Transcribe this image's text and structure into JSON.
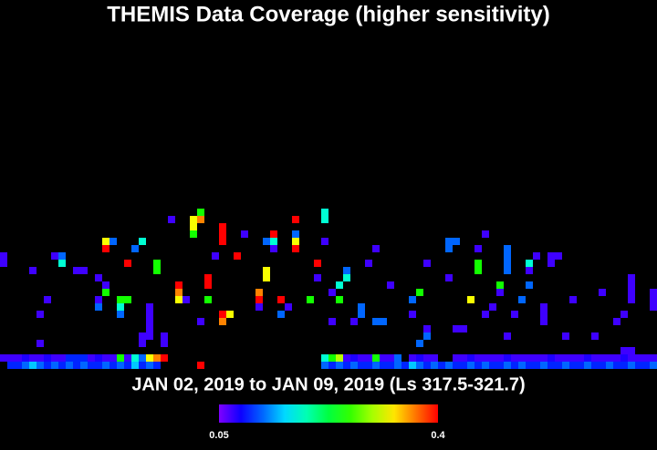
{
  "chart_data": {
    "type": "heatmap",
    "title": "THEMIS Data Coverage (higher sensitivity)",
    "subtitle": "JAN 02, 2019 to JAN 09, 2019 (Ls 317.5-321.7)",
    "xlim": [
      0,
      90
    ],
    "ylim": [
      0,
      50
    ],
    "cells": [
      [
        0,
        1,
        0.07
      ],
      [
        1,
        1,
        0.07
      ],
      [
        2,
        1,
        0.07
      ],
      [
        3,
        1,
        0.08
      ],
      [
        4,
        1,
        0.07
      ],
      [
        5,
        1,
        0.07
      ],
      [
        6,
        1,
        0.08
      ],
      [
        7,
        1,
        0.07
      ],
      [
        8,
        1,
        0.07
      ],
      [
        9,
        1,
        0.1
      ],
      [
        10,
        1,
        0.1
      ],
      [
        11,
        1,
        0.1
      ],
      [
        12,
        1,
        0.07
      ],
      [
        13,
        1,
        0.08
      ],
      [
        14,
        1,
        0.07
      ],
      [
        15,
        1,
        0.07
      ],
      [
        16,
        1,
        0.25
      ],
      [
        17,
        1,
        0.07
      ],
      [
        18,
        1,
        0.18
      ],
      [
        19,
        1,
        0.12
      ],
      [
        20,
        1,
        0.32
      ],
      [
        21,
        1,
        0.36
      ],
      [
        22,
        1,
        0.4
      ],
      [
        44,
        1,
        0.18
      ],
      [
        45,
        1,
        0.25
      ],
      [
        46,
        1,
        0.3
      ],
      [
        47,
        1,
        0.07
      ],
      [
        48,
        1,
        0.08
      ],
      [
        49,
        1,
        0.07
      ],
      [
        50,
        1,
        0.07
      ],
      [
        51,
        1,
        0.25
      ],
      [
        52,
        1,
        0.07
      ],
      [
        53,
        1,
        0.07
      ],
      [
        54,
        1,
        0.12
      ],
      [
        56,
        1,
        0.07
      ],
      [
        57,
        1,
        0.08
      ],
      [
        58,
        1,
        0.07
      ],
      [
        59,
        1,
        0.07
      ],
      [
        62,
        1,
        0.07
      ],
      [
        63,
        1,
        0.07
      ],
      [
        64,
        1,
        0.08
      ],
      [
        65,
        1,
        0.07
      ],
      [
        66,
        1,
        0.07
      ],
      [
        67,
        1,
        0.07
      ],
      [
        68,
        1,
        0.07
      ],
      [
        69,
        1,
        0.08
      ],
      [
        70,
        1,
        0.07
      ],
      [
        71,
        1,
        0.07
      ],
      [
        72,
        1,
        0.07
      ],
      [
        73,
        1,
        0.07
      ],
      [
        74,
        1,
        0.07
      ],
      [
        75,
        1,
        0.08
      ],
      [
        76,
        1,
        0.07
      ],
      [
        77,
        1,
        0.07
      ],
      [
        78,
        1,
        0.07
      ],
      [
        79,
        1,
        0.07
      ],
      [
        80,
        1,
        0.08
      ],
      [
        81,
        1,
        0.07
      ],
      [
        82,
        1,
        0.07
      ],
      [
        83,
        1,
        0.07
      ],
      [
        84,
        1,
        0.07
      ],
      [
        85,
        1,
        0.08
      ],
      [
        86,
        1,
        0.07
      ],
      [
        87,
        1,
        0.07
      ],
      [
        88,
        1,
        0.07
      ],
      [
        89,
        1,
        0.07
      ],
      [
        1,
        0,
        0.1
      ],
      [
        2,
        0,
        0.1
      ],
      [
        3,
        0,
        0.12
      ],
      [
        4,
        0,
        0.15
      ],
      [
        5,
        0,
        0.12
      ],
      [
        6,
        0,
        0.1
      ],
      [
        7,
        0,
        0.12
      ],
      [
        8,
        0,
        0.1
      ],
      [
        9,
        0,
        0.12
      ],
      [
        10,
        0,
        0.1
      ],
      [
        11,
        0,
        0.12
      ],
      [
        12,
        0,
        0.1
      ],
      [
        13,
        0,
        0.1
      ],
      [
        14,
        0,
        0.12
      ],
      [
        15,
        0,
        0.1
      ],
      [
        16,
        0,
        0.12
      ],
      [
        17,
        0,
        0.1
      ],
      [
        18,
        0,
        0.15
      ],
      [
        19,
        0,
        0.1
      ],
      [
        20,
        0,
        0.12
      ],
      [
        21,
        0,
        0.1
      ],
      [
        27,
        0,
        0.4
      ],
      [
        44,
        0,
        0.12
      ],
      [
        45,
        0,
        0.1
      ],
      [
        46,
        0,
        0.12
      ],
      [
        47,
        0,
        0.1
      ],
      [
        48,
        0,
        0.12
      ],
      [
        49,
        0,
        0.1
      ],
      [
        50,
        0,
        0.1
      ],
      [
        51,
        0,
        0.12
      ],
      [
        52,
        0,
        0.1
      ],
      [
        53,
        0,
        0.1
      ],
      [
        54,
        0,
        0.12
      ],
      [
        55,
        0,
        0.1
      ],
      [
        56,
        0,
        0.15
      ],
      [
        57,
        0,
        0.12
      ],
      [
        58,
        0,
        0.1
      ],
      [
        59,
        0,
        0.12
      ],
      [
        60,
        0,
        0.1
      ],
      [
        61,
        0,
        0.12
      ],
      [
        62,
        0,
        0.1
      ],
      [
        63,
        0,
        0.1
      ],
      [
        64,
        0,
        0.12
      ],
      [
        65,
        0,
        0.1
      ],
      [
        66,
        0,
        0.12
      ],
      [
        67,
        0,
        0.1
      ],
      [
        68,
        0,
        0.1
      ],
      [
        69,
        0,
        0.12
      ],
      [
        70,
        0,
        0.1
      ],
      [
        71,
        0,
        0.12
      ],
      [
        72,
        0,
        0.1
      ],
      [
        73,
        0,
        0.1
      ],
      [
        74,
        0,
        0.12
      ],
      [
        75,
        0,
        0.1
      ],
      [
        76,
        0,
        0.1
      ],
      [
        77,
        0,
        0.12
      ],
      [
        78,
        0,
        0.1
      ],
      [
        79,
        0,
        0.1
      ],
      [
        80,
        0,
        0.12
      ],
      [
        81,
        0,
        0.1
      ],
      [
        82,
        0,
        0.1
      ],
      [
        83,
        0,
        0.12
      ],
      [
        84,
        0,
        0.1
      ],
      [
        85,
        0,
        0.1
      ],
      [
        86,
        0,
        0.12
      ],
      [
        87,
        0,
        0.1
      ],
      [
        88,
        0,
        0.1
      ],
      [
        89,
        0,
        0.12
      ],
      [
        23,
        20,
        0.07
      ],
      [
        26,
        20,
        0.32
      ],
      [
        27,
        21,
        0.25
      ],
      [
        27,
        20,
        0.36
      ],
      [
        26,
        18,
        0.25
      ],
      [
        26,
        19,
        0.32
      ],
      [
        30,
        17,
        0.4
      ],
      [
        30,
        18,
        0.4
      ],
      [
        30,
        19,
        0.4
      ],
      [
        40,
        20,
        0.4
      ],
      [
        40,
        18,
        0.12
      ],
      [
        40,
        17,
        0.32
      ],
      [
        40,
        16,
        0.4
      ],
      [
        44,
        20,
        0.18
      ],
      [
        44,
        21,
        0.18
      ],
      [
        44,
        17,
        0.07
      ],
      [
        37,
        18,
        0.4
      ],
      [
        36,
        17,
        0.12
      ],
      [
        37,
        17,
        0.18
      ],
      [
        37,
        16,
        0.07
      ],
      [
        33,
        18,
        0.07
      ],
      [
        14,
        17,
        0.32
      ],
      [
        14,
        16,
        0.4
      ],
      [
        15,
        17,
        0.12
      ],
      [
        18,
        16,
        0.12
      ],
      [
        19,
        17,
        0.18
      ],
      [
        29,
        15,
        0.07
      ],
      [
        32,
        15,
        0.4
      ],
      [
        17,
        14,
        0.4
      ],
      [
        21,
        13,
        0.25
      ],
      [
        21,
        14,
        0.25
      ],
      [
        36,
        13,
        0.32
      ],
      [
        36,
        12,
        0.32
      ],
      [
        43,
        14,
        0.4
      ],
      [
        0,
        15,
        0.07
      ],
      [
        0,
        14,
        0.07
      ],
      [
        7,
        15,
        0.07
      ],
      [
        8,
        15,
        0.12
      ],
      [
        8,
        14,
        0.18
      ],
      [
        4,
        13,
        0.07
      ],
      [
        10,
        13,
        0.07
      ],
      [
        11,
        13,
        0.07
      ],
      [
        13,
        12,
        0.07
      ],
      [
        14,
        11,
        0.07
      ],
      [
        14,
        10,
        0.25
      ],
      [
        16,
        9,
        0.25
      ],
      [
        17,
        9,
        0.25
      ],
      [
        16,
        8,
        0.18
      ],
      [
        16,
        7,
        0.12
      ],
      [
        24,
        11,
        0.4
      ],
      [
        24,
        10,
        0.36
      ],
      [
        24,
        9,
        0.32
      ],
      [
        28,
        12,
        0.4
      ],
      [
        28,
        11,
        0.4
      ],
      [
        28,
        9,
        0.25
      ],
      [
        25,
        9,
        0.07
      ],
      [
        35,
        10,
        0.36
      ],
      [
        35,
        9,
        0.4
      ],
      [
        35,
        8,
        0.07
      ],
      [
        38,
        9,
        0.4
      ],
      [
        38,
        7,
        0.12
      ],
      [
        39,
        8,
        0.07
      ],
      [
        42,
        9,
        0.25
      ],
      [
        43,
        12,
        0.07
      ],
      [
        45,
        10,
        0.07
      ],
      [
        46,
        11,
        0.18
      ],
      [
        46,
        9,
        0.25
      ],
      [
        47,
        13,
        0.12
      ],
      [
        47,
        12,
        0.18
      ],
      [
        50,
        14,
        0.07
      ],
      [
        51,
        16,
        0.07
      ],
      [
        49,
        8,
        0.12
      ],
      [
        49,
        7,
        0.12
      ],
      [
        51,
        6,
        0.12
      ],
      [
        52,
        6,
        0.12
      ],
      [
        48,
        6,
        0.07
      ],
      [
        45,
        6,
        0.07
      ],
      [
        30,
        7,
        0.4
      ],
      [
        30,
        6,
        0.36
      ],
      [
        31,
        7,
        0.32
      ],
      [
        27,
        6,
        0.07
      ],
      [
        20,
        4,
        0.07
      ],
      [
        20,
        5,
        0.07
      ],
      [
        20,
        6,
        0.07
      ],
      [
        20,
        7,
        0.07
      ],
      [
        20,
        8,
        0.07
      ],
      [
        19,
        4,
        0.07
      ],
      [
        19,
        3,
        0.07
      ],
      [
        22,
        3,
        0.07
      ],
      [
        22,
        4,
        0.07
      ],
      [
        6,
        9,
        0.07
      ],
      [
        5,
        7,
        0.07
      ],
      [
        5,
        3,
        0.07
      ],
      [
        13,
        9,
        0.07
      ],
      [
        13,
        8,
        0.12
      ],
      [
        61,
        16,
        0.12
      ],
      [
        61,
        17,
        0.12
      ],
      [
        62,
        17,
        0.12
      ],
      [
        65,
        16,
        0.07
      ],
      [
        65,
        14,
        0.25
      ],
      [
        65,
        13,
        0.25
      ],
      [
        66,
        18,
        0.07
      ],
      [
        69,
        13,
        0.12
      ],
      [
        69,
        14,
        0.12
      ],
      [
        69,
        15,
        0.12
      ],
      [
        69,
        16,
        0.12
      ],
      [
        72,
        14,
        0.18
      ],
      [
        72,
        13,
        0.07
      ],
      [
        73,
        15,
        0.07
      ],
      [
        75,
        14,
        0.07
      ],
      [
        75,
        15,
        0.07
      ],
      [
        76,
        15,
        0.07
      ],
      [
        58,
        14,
        0.07
      ],
      [
        61,
        12,
        0.07
      ],
      [
        53,
        11,
        0.07
      ],
      [
        57,
        10,
        0.25
      ],
      [
        56,
        9,
        0.12
      ],
      [
        56,
        7,
        0.07
      ],
      [
        68,
        11,
        0.25
      ],
      [
        68,
        10,
        0.07
      ],
      [
        64,
        9,
        0.32
      ],
      [
        67,
        8,
        0.07
      ],
      [
        66,
        7,
        0.07
      ],
      [
        71,
        9,
        0.12
      ],
      [
        72,
        11,
        0.12
      ],
      [
        70,
        7,
        0.07
      ],
      [
        62,
        5,
        0.07
      ],
      [
        63,
        5,
        0.07
      ],
      [
        58,
        4,
        0.12
      ],
      [
        57,
        3,
        0.12
      ],
      [
        58,
        5,
        0.07
      ],
      [
        74,
        6,
        0.07
      ],
      [
        74,
        7,
        0.07
      ],
      [
        74,
        8,
        0.07
      ],
      [
        78,
        9,
        0.07
      ],
      [
        82,
        10,
        0.07
      ],
      [
        86,
        9,
        0.07
      ],
      [
        86,
        10,
        0.07
      ],
      [
        86,
        11,
        0.07
      ],
      [
        86,
        12,
        0.07
      ],
      [
        89,
        8,
        0.07
      ],
      [
        89,
        9,
        0.07
      ],
      [
        89,
        10,
        0.07
      ],
      [
        85,
        7,
        0.07
      ],
      [
        84,
        6,
        0.07
      ],
      [
        81,
        4,
        0.07
      ],
      [
        77,
        4,
        0.07
      ],
      [
        69,
        4,
        0.07
      ],
      [
        86,
        2,
        0.07
      ],
      [
        85,
        2,
        0.07
      ]
    ],
    "colorbar": {
      "range": [
        0.05,
        0.4
      ],
      "ticks": [
        0.05,
        0.4
      ]
    }
  }
}
